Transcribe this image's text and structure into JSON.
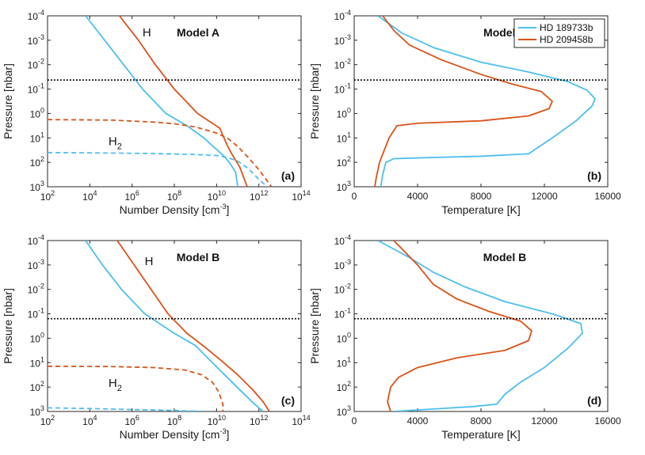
{
  "colors": {
    "hd189": "#4DBEEE",
    "hd209": "#D95319",
    "exobase": "#000000"
  },
  "legend": {
    "entries": [
      "HD 189733b",
      "HD 209458b"
    ]
  },
  "chart_data": [
    {
      "panel": "(a)",
      "model": "Model A",
      "type": "line",
      "xlabel": "Number Density [cm",
      "xlabel_exp": "-3",
      "xlabel_tail": "]",
      "ylabel": "Pressure [nbar]",
      "x_scale": "log",
      "xlim_exp": [
        2,
        14
      ],
      "x_tick_exps": [
        "2",
        "4",
        "6",
        "8",
        "10",
        "12",
        "14"
      ],
      "y_scale": "log",
      "ylim_exp": [
        -4,
        3
      ],
      "y_tick_exps": [
        "-4",
        "-3",
        "-2",
        "-1",
        "0",
        "1",
        "2",
        "3"
      ],
      "y_inverted": true,
      "exobase_logP": -1.37,
      "annotations": [
        {
          "text": "H",
          "sub": "",
          "x_exp": 6.7,
          "y_exp": -3.15
        },
        {
          "text": "H",
          "sub": "2",
          "x_exp": 5.2,
          "y_exp": 1.3
        }
      ],
      "series": [
        {
          "name": "H HD 189733b",
          "color_key": "hd189",
          "dash": false,
          "points": [
            [
              3.8,
              -4
            ],
            [
              4.7,
              -3
            ],
            [
              5.6,
              -2
            ],
            [
              6.5,
              -1
            ],
            [
              7.6,
              0
            ],
            [
              8.6,
              0.5
            ],
            [
              9.4,
              1
            ],
            [
              9.9,
              1.4
            ],
            [
              10.3,
              1.7
            ],
            [
              10.6,
              2
            ],
            [
              10.9,
              2.4
            ],
            [
              11.0,
              3
            ]
          ]
        },
        {
          "name": "H HD 209458b",
          "color_key": "hd209",
          "dash": false,
          "points": [
            [
              5.4,
              -4
            ],
            [
              6.3,
              -3
            ],
            [
              7.1,
              -2
            ],
            [
              8.0,
              -1
            ],
            [
              9.1,
              0
            ],
            [
              9.8,
              0.4
            ],
            [
              10.15,
              0.6
            ],
            [
              10.3,
              0.9
            ],
            [
              10.5,
              1.3
            ],
            [
              10.75,
              1.7
            ],
            [
              11.1,
              2.2
            ],
            [
              11.45,
              3
            ]
          ]
        },
        {
          "name": "H2 HD 189733b",
          "color_key": "hd189",
          "dash": true,
          "points": [
            [
              2,
              1.6
            ],
            [
              5,
              1.62
            ],
            [
              7,
              1.64
            ],
            [
              9,
              1.68
            ],
            [
              10,
              1.72
            ],
            [
              10.5,
              1.8
            ],
            [
              11,
              1.95
            ],
            [
              11.5,
              2.25
            ],
            [
              12,
              2.7
            ],
            [
              12.4,
              3
            ]
          ]
        },
        {
          "name": "H2 HD 209458b",
          "color_key": "hd209",
          "dash": true,
          "points": [
            [
              2,
              0.25
            ],
            [
              5,
              0.27
            ],
            [
              7,
              0.35
            ],
            [
              8,
              0.42
            ],
            [
              9,
              0.55
            ],
            [
              10,
              0.8
            ],
            [
              10.5,
              1.0
            ],
            [
              11,
              1.35
            ],
            [
              11.5,
              1.8
            ],
            [
              12,
              2.3
            ],
            [
              12.6,
              3
            ]
          ]
        }
      ]
    },
    {
      "panel": "(b)",
      "model": "Model A",
      "type": "line",
      "xlabel": "Temperature [K]",
      "xlabel_exp": "",
      "xlabel_tail": "",
      "ylabel": "Pressure [nbar]",
      "x_scale": "linear",
      "xlim": [
        0,
        16000
      ],
      "x_ticks": [
        "0",
        "4000",
        "8000",
        "12000",
        "16000"
      ],
      "y_scale": "log",
      "ylim_exp": [
        -4,
        3
      ],
      "y_tick_exps": [
        "-4",
        "-3",
        "-2",
        "-1",
        "0",
        "1",
        "2",
        "3"
      ],
      "y_inverted": true,
      "exobase_logP": -1.37,
      "annotations": [],
      "series": [
        {
          "name": "HD 189733b",
          "color_key": "hd189",
          "dash": false,
          "points": [
            [
              1700,
              3
            ],
            [
              1700,
              2.9
            ],
            [
              1800,
              2.5
            ],
            [
              2000,
              2.0
            ],
            [
              2500,
              1.85
            ],
            [
              5000,
              1.8
            ],
            [
              8000,
              1.75
            ],
            [
              11000,
              1.65
            ],
            [
              12500,
              1.0
            ],
            [
              14000,
              0.3
            ],
            [
              15000,
              -0.3
            ],
            [
              15200,
              -0.6
            ],
            [
              14700,
              -0.95
            ],
            [
              13500,
              -1.3
            ],
            [
              11000,
              -1.7
            ],
            [
              8000,
              -2.1
            ],
            [
              5000,
              -2.7
            ],
            [
              3000,
              -3.3
            ],
            [
              1500,
              -4
            ]
          ]
        },
        {
          "name": "HD 209458b",
          "color_key": "hd209",
          "dash": false,
          "points": [
            [
              1300,
              3
            ],
            [
              1400,
              2.6
            ],
            [
              1600,
              2.0
            ],
            [
              1900,
              1.5
            ],
            [
              2200,
              1.0
            ],
            [
              2700,
              0.5
            ],
            [
              4000,
              0.4
            ],
            [
              8000,
              0.3
            ],
            [
              11000,
              0.1
            ],
            [
              12300,
              -0.2
            ],
            [
              12500,
              -0.5
            ],
            [
              11800,
              -0.9
            ],
            [
              10000,
              -1.2
            ],
            [
              8000,
              -1.6
            ],
            [
              5500,
              -2.2
            ],
            [
              3500,
              -2.8
            ],
            [
              2500,
              -3.4
            ],
            [
              1800,
              -4
            ]
          ]
        }
      ]
    },
    {
      "panel": "(c)",
      "model": "Model B",
      "type": "line",
      "xlabel": "Number Density [cm",
      "xlabel_exp": "-3",
      "xlabel_tail": "]",
      "ylabel": "Pressure [nbar]",
      "x_scale": "log",
      "xlim_exp": [
        2,
        14
      ],
      "x_tick_exps": [
        "2",
        "4",
        "6",
        "8",
        "10",
        "12",
        "14"
      ],
      "y_scale": "log",
      "ylim_exp": [
        -4,
        3
      ],
      "y_tick_exps": [
        "-4",
        "-3",
        "-2",
        "-1",
        "0",
        "1",
        "2",
        "3"
      ],
      "y_inverted": true,
      "exobase_logP": -0.8,
      "annotations": [
        {
          "text": "H",
          "sub": "",
          "x_exp": 6.8,
          "y_exp": -3.0
        },
        {
          "text": "H",
          "sub": "2",
          "x_exp": 5.2,
          "y_exp": 2.0
        }
      ],
      "series": [
        {
          "name": "H HD 189733b",
          "color_key": "hd189",
          "dash": false,
          "points": [
            [
              3.8,
              -4
            ],
            [
              4.6,
              -3
            ],
            [
              5.5,
              -2
            ],
            [
              6.6,
              -1
            ],
            [
              8.0,
              -0.2
            ],
            [
              9.0,
              0.3
            ],
            [
              9.8,
              1.0
            ],
            [
              10.5,
              1.6
            ],
            [
              11.2,
              2.2
            ],
            [
              11.8,
              2.7
            ],
            [
              12.2,
              3
            ]
          ]
        },
        {
          "name": "H HD 209458b",
          "color_key": "hd209",
          "dash": false,
          "points": [
            [
              5.3,
              -4
            ],
            [
              6.1,
              -3
            ],
            [
              6.9,
              -2
            ],
            [
              7.7,
              -1
            ],
            [
              8.6,
              -0.2
            ],
            [
              9.5,
              0.4
            ],
            [
              10.2,
              0.9
            ],
            [
              11.0,
              1.5
            ],
            [
              11.7,
              2.1
            ],
            [
              12.2,
              2.6
            ],
            [
              12.5,
              3
            ]
          ]
        },
        {
          "name": "H2 HD 189733b",
          "color_key": "hd189",
          "dash": true,
          "points": [
            [
              2,
              2.85
            ],
            [
              4,
              2.88
            ],
            [
              6,
              2.92
            ],
            [
              8,
              2.96
            ],
            [
              9.5,
              3
            ]
          ]
        },
        {
          "name": "H2 HD 209458b",
          "color_key": "hd209",
          "dash": true,
          "points": [
            [
              2,
              1.15
            ],
            [
              5,
              1.16
            ],
            [
              7,
              1.2
            ],
            [
              8.5,
              1.3
            ],
            [
              9.3,
              1.5
            ],
            [
              9.8,
              1.8
            ],
            [
              10.1,
              2.2
            ],
            [
              10.3,
              2.7
            ],
            [
              10.3,
              3
            ]
          ]
        }
      ]
    },
    {
      "panel": "(d)",
      "model": "Model B",
      "type": "line",
      "xlabel": "Temperature [K]",
      "xlabel_exp": "",
      "xlabel_tail": "",
      "ylabel": "Pressure [nbar]",
      "x_scale": "linear",
      "xlim": [
        0,
        16000
      ],
      "x_ticks": [
        "0",
        "4000",
        "8000",
        "12000",
        "16000"
      ],
      "y_scale": "log",
      "ylim_exp": [
        -4,
        3
      ],
      "y_tick_exps": [
        "-4",
        "-3",
        "-2",
        "-1",
        "0",
        "1",
        "2",
        "3"
      ],
      "y_inverted": true,
      "exobase_logP": -0.8,
      "annotations": [],
      "series": [
        {
          "name": "HD 189733b",
          "color_key": "hd189",
          "dash": false,
          "points": [
            [
              2500,
              3
            ],
            [
              5000,
              2.9
            ],
            [
              7500,
              2.8
            ],
            [
              9000,
              2.7
            ],
            [
              9500,
              2.3
            ],
            [
              10500,
              1.8
            ],
            [
              12000,
              1.2
            ],
            [
              13500,
              0.4
            ],
            [
              14400,
              -0.2
            ],
            [
              14300,
              -0.6
            ],
            [
              12500,
              -1.0
            ],
            [
              9500,
              -1.5
            ],
            [
              7000,
              -2.1
            ],
            [
              5000,
              -2.7
            ],
            [
              3500,
              -3.3
            ],
            [
              1500,
              -4
            ]
          ]
        },
        {
          "name": "HD 209458b",
          "color_key": "hd209",
          "dash": false,
          "points": [
            [
              2300,
              3
            ],
            [
              2100,
              2.6
            ],
            [
              2300,
              2.0
            ],
            [
              2800,
              1.6
            ],
            [
              4000,
              1.2
            ],
            [
              6500,
              0.8
            ],
            [
              9500,
              0.5
            ],
            [
              11000,
              0.1
            ],
            [
              11200,
              -0.3
            ],
            [
              10500,
              -0.7
            ],
            [
              8500,
              -1.1
            ],
            [
              6500,
              -1.6
            ],
            [
              5000,
              -2.2
            ],
            [
              4000,
              -3
            ],
            [
              2500,
              -4
            ]
          ]
        }
      ]
    }
  ]
}
